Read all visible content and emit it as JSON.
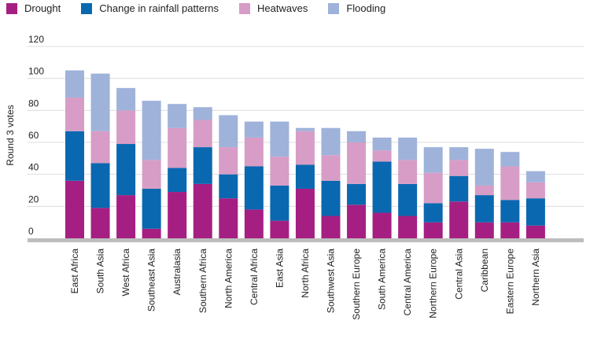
{
  "chart_data": {
    "type": "bar",
    "stacked": true,
    "title": "",
    "xlabel": "",
    "ylabel": "Round 3 votes",
    "ylim": [
      0,
      120
    ],
    "yticks": [
      0,
      20,
      40,
      60,
      80,
      100,
      120
    ],
    "grid": true,
    "legend_position": "top-left",
    "categories": [
      "East Africa",
      "South Asia",
      "West Africa",
      "Southeast Asia",
      "Australasia",
      "Southern Africa",
      "North America",
      "Central Africa",
      "East Asia",
      "North Africa",
      "Southwest Asia",
      "Southern Europe",
      "South America",
      "Central America",
      "Northern Europe",
      "Central Asia",
      "Caribbean",
      "Eastern Europe",
      "Northern Asia"
    ],
    "series": [
      {
        "name": "Drought",
        "color": "#a51f82",
        "values": [
          36,
          19,
          27,
          6,
          29,
          34,
          25,
          18,
          11,
          31,
          14,
          21,
          16,
          14,
          10,
          23,
          10,
          10,
          8
        ]
      },
      {
        "name": "Change in rainfall patterns",
        "color": "#0a68b0",
        "values": [
          31,
          28,
          32,
          25,
          15,
          23,
          15,
          27,
          22,
          15,
          22,
          13,
          32,
          20,
          12,
          16,
          17,
          14,
          17
        ]
      },
      {
        "name": "Heatwaves",
        "color": "#d79dc6",
        "values": [
          21,
          20,
          21,
          18,
          25,
          17,
          17,
          18,
          18,
          21,
          16,
          26,
          7,
          15,
          19,
          10,
          6,
          21,
          10
        ]
      },
      {
        "name": "Flooding",
        "color": "#9fb2da",
        "values": [
          17,
          36,
          14,
          37,
          15,
          8,
          20,
          10,
          22,
          2,
          17,
          7,
          8,
          14,
          16,
          8,
          23,
          9,
          7
        ]
      }
    ]
  }
}
